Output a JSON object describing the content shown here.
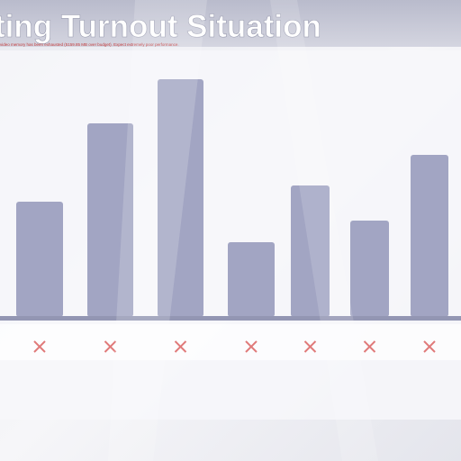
{
  "chart_data": {
    "type": "bar",
    "title": "ting Turnout Situation",
    "warning": "video memory has been exhausted (5159.85 MB over budget). Expect extremely poor performance.",
    "categories": [
      null,
      null,
      null,
      null,
      null,
      null,
      null
    ],
    "values": [
      128,
      215,
      264,
      83,
      146,
      107,
      180
    ],
    "color": "#a2a5c3",
    "ylim": [
      0,
      352
    ]
  }
}
